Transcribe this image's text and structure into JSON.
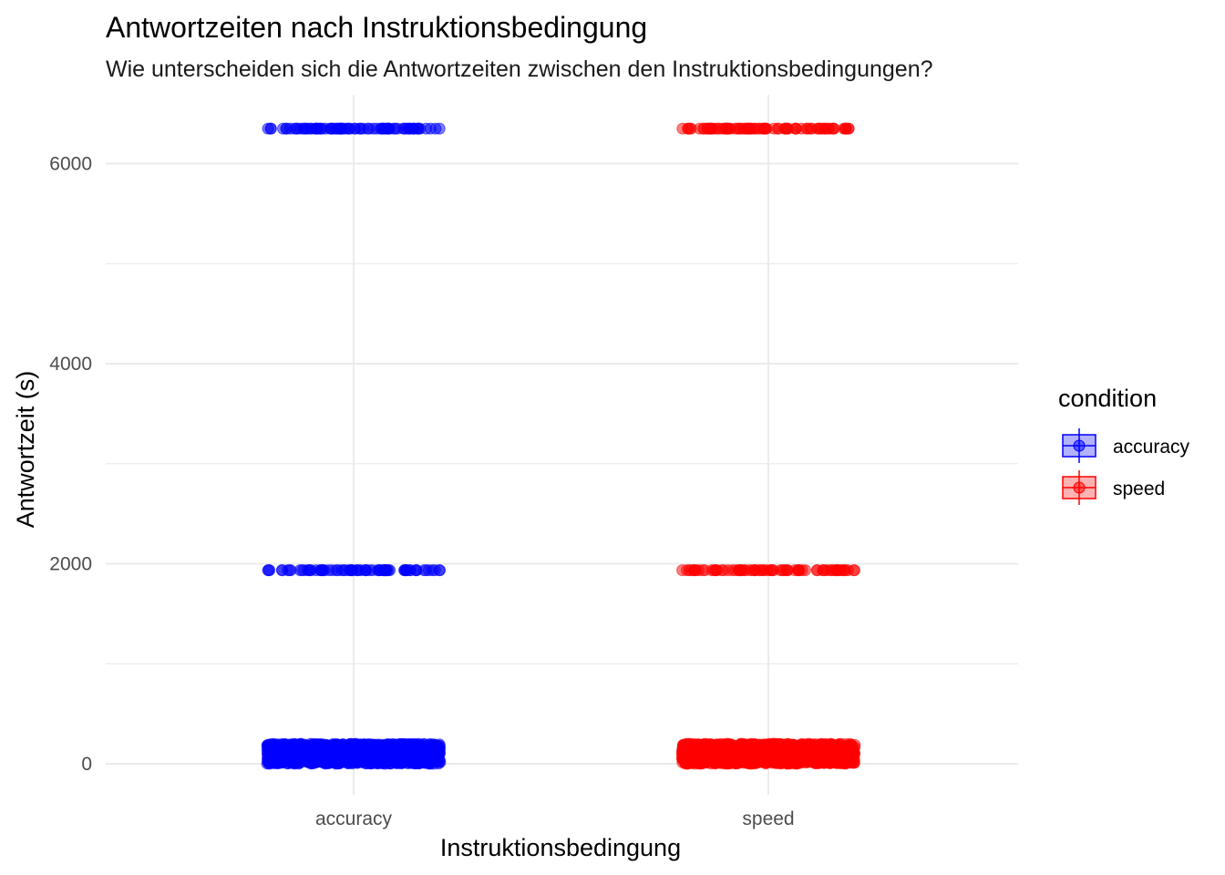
{
  "chart_data": {
    "type": "scatter",
    "title": "Antwortzeiten nach Instruktionsbedingung",
    "subtitle": "Wie unterscheiden sich die Antwortzeiten zwischen den Instruktionsbedingungen?",
    "xlabel": "Instruktionsbedingung",
    "ylabel": "Antwortzeit (s)",
    "categories": [
      "accuracy",
      "speed"
    ],
    "ylim": [
      -300,
      6500
    ],
    "yticks": [
      0,
      2000,
      4000,
      6000
    ],
    "grid": true,
    "jitter_width": 0.42,
    "legend": {
      "title": "condition",
      "position": "right",
      "entries": [
        "accuracy",
        "speed"
      ]
    },
    "series": [
      {
        "name": "accuracy",
        "color": "#0000FF",
        "clusters": [
          {
            "y": 6350,
            "y_spread": 0,
            "n": 80
          },
          {
            "y": 1935,
            "y_spread": 0,
            "n": 75
          },
          {
            "y": 100,
            "y_spread": 200,
            "n": 1500
          }
        ]
      },
      {
        "name": "speed",
        "color": "#FF0000",
        "clusters": [
          {
            "y": 6350,
            "y_spread": 0,
            "n": 80
          },
          {
            "y": 1935,
            "y_spread": 0,
            "n": 75
          },
          {
            "y": 100,
            "y_spread": 200,
            "n": 1500
          }
        ]
      }
    ]
  }
}
